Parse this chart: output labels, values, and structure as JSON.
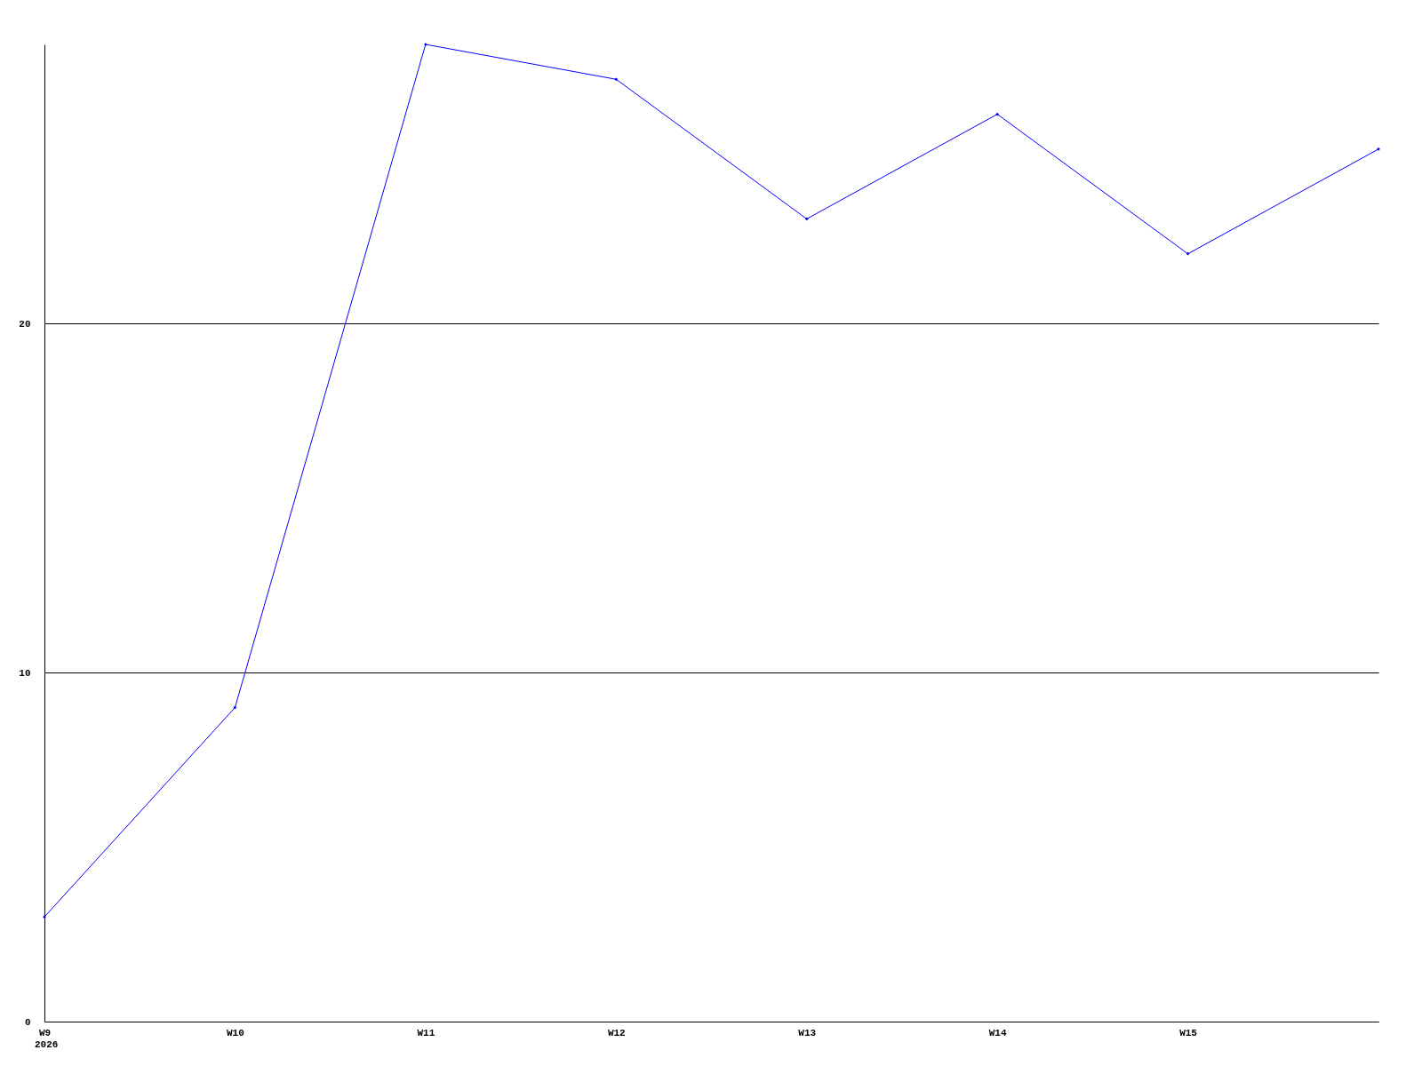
{
  "chart_data": {
    "type": "line",
    "categories": [
      "W9",
      "W10",
      "W11",
      "W12",
      "W13",
      "W14",
      "W15",
      null
    ],
    "series": [
      {
        "color": "#0000ff",
        "values": [
          3,
          9,
          28,
          27,
          23,
          26,
          22,
          25
        ]
      }
    ],
    "ylim": [
      0,
      28
    ],
    "yticks": [
      0,
      10,
      20
    ],
    "grid": "y",
    "marker": "diamond",
    "line_style": "solid",
    "annotations": [
      "2026"
    ]
  }
}
